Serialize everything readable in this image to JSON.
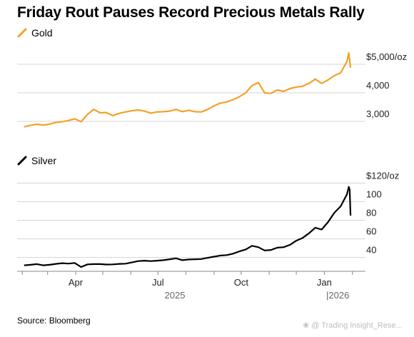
{
  "title": "Friday Rout Pauses Record Precious Metals Rally",
  "source": "Source: Bloomberg",
  "watermark": "❀ @ Trading Insight_Rese...",
  "colors": {
    "gold": "#f5a02a",
    "silver": "#000000",
    "grid": "#d6d6d6"
  },
  "chart_data": [
    {
      "type": "line",
      "title": "Gold",
      "legend": "Gold",
      "color": "#f5a02a",
      "ylim": [
        2700,
        5600
      ],
      "yticks": [
        3000,
        4000,
        5000
      ],
      "ytick_labels": [
        "3,000",
        "4,000",
        "$5,000/oz"
      ],
      "grid": true,
      "series": [
        {
          "name": "Gold",
          "values": [
            [
              "2025-02-03",
              2810
            ],
            [
              "2025-02-10",
              2860
            ],
            [
              "2025-02-17",
              2900
            ],
            [
              "2025-02-24",
              2870
            ],
            [
              "2025-03-03",
              2900
            ],
            [
              "2025-03-10",
              2960
            ],
            [
              "2025-03-17",
              2990
            ],
            [
              "2025-03-24",
              3030
            ],
            [
              "2025-03-31",
              3090
            ],
            [
              "2025-04-07",
              2990
            ],
            [
              "2025-04-14",
              3240
            ],
            [
              "2025-04-21",
              3420
            ],
            [
              "2025-04-28",
              3300
            ],
            [
              "2025-05-05",
              3310
            ],
            [
              "2025-05-12",
              3200
            ],
            [
              "2025-05-19",
              3280
            ],
            [
              "2025-05-26",
              3330
            ],
            [
              "2025-06-02",
              3370
            ],
            [
              "2025-06-09",
              3400
            ],
            [
              "2025-06-16",
              3360
            ],
            [
              "2025-06-23",
              3290
            ],
            [
              "2025-06-30",
              3330
            ],
            [
              "2025-07-07",
              3340
            ],
            [
              "2025-07-14",
              3360
            ],
            [
              "2025-07-21",
              3420
            ],
            [
              "2025-07-28",
              3340
            ],
            [
              "2025-08-04",
              3390
            ],
            [
              "2025-08-11",
              3340
            ],
            [
              "2025-08-18",
              3330
            ],
            [
              "2025-08-25",
              3420
            ],
            [
              "2025-09-01",
              3540
            ],
            [
              "2025-09-08",
              3640
            ],
            [
              "2025-09-15",
              3680
            ],
            [
              "2025-09-22",
              3760
            ],
            [
              "2025-09-29",
              3860
            ],
            [
              "2025-10-06",
              4000
            ],
            [
              "2025-10-13",
              4250
            ],
            [
              "2025-10-20",
              4360
            ],
            [
              "2025-10-27",
              4000
            ],
            [
              "2025-11-03",
              3980
            ],
            [
              "2025-11-10",
              4100
            ],
            [
              "2025-11-17",
              4050
            ],
            [
              "2025-11-24",
              4150
            ],
            [
              "2025-12-01",
              4200
            ],
            [
              "2025-12-08",
              4230
            ],
            [
              "2025-12-15",
              4330
            ],
            [
              "2025-12-22",
              4480
            ],
            [
              "2025-12-29",
              4330
            ],
            [
              "2026-01-05",
              4450
            ],
            [
              "2026-01-12",
              4600
            ],
            [
              "2026-01-19",
              4700
            ],
            [
              "2026-01-26",
              5100
            ],
            [
              "2026-01-28",
              5400
            ],
            [
              "2026-01-30",
              4880
            ]
          ]
        }
      ]
    },
    {
      "type": "line",
      "title": "Silver",
      "legend": "Silver",
      "color": "#000000",
      "ylim": [
        25,
        125
      ],
      "yticks": [
        40,
        60,
        80,
        100,
        120
      ],
      "ytick_labels": [
        "40",
        "60",
        "80",
        "100",
        "$120/oz"
      ],
      "grid": true,
      "series": [
        {
          "name": "Silver",
          "values": [
            [
              "2025-02-03",
              31.5
            ],
            [
              "2025-02-10",
              32.0
            ],
            [
              "2025-02-17",
              32.8
            ],
            [
              "2025-02-24",
              31.5
            ],
            [
              "2025-03-03",
              32.0
            ],
            [
              "2025-03-10",
              33.0
            ],
            [
              "2025-03-17",
              33.8
            ],
            [
              "2025-03-24",
              33.3
            ],
            [
              "2025-03-31",
              34.0
            ],
            [
              "2025-04-07",
              29.6
            ],
            [
              "2025-04-14",
              32.5
            ],
            [
              "2025-04-21",
              32.8
            ],
            [
              "2025-04-28",
              32.8
            ],
            [
              "2025-05-05",
              32.3
            ],
            [
              "2025-05-12",
              32.5
            ],
            [
              "2025-05-19",
              33.0
            ],
            [
              "2025-05-26",
              33.2
            ],
            [
              "2025-06-02",
              34.5
            ],
            [
              "2025-06-09",
              36.0
            ],
            [
              "2025-06-16",
              36.5
            ],
            [
              "2025-06-23",
              36.0
            ],
            [
              "2025-06-30",
              36.5
            ],
            [
              "2025-07-07",
              37.0
            ],
            [
              "2025-07-14",
              38.0
            ],
            [
              "2025-07-21",
              39.0
            ],
            [
              "2025-07-28",
              37.0
            ],
            [
              "2025-08-04",
              37.8
            ],
            [
              "2025-08-11",
              38.0
            ],
            [
              "2025-08-18",
              38.2
            ],
            [
              "2025-08-25",
              39.5
            ],
            [
              "2025-09-01",
              40.8
            ],
            [
              "2025-09-08",
              42.0
            ],
            [
              "2025-09-15",
              42.5
            ],
            [
              "2025-09-22",
              44.0
            ],
            [
              "2025-09-29",
              46.5
            ],
            [
              "2025-10-06",
              48.5
            ],
            [
              "2025-10-13",
              52.5
            ],
            [
              "2025-10-20",
              51.0
            ],
            [
              "2025-10-27",
              47.5
            ],
            [
              "2025-11-03",
              48.0
            ],
            [
              "2025-11-10",
              50.5
            ],
            [
              "2025-11-17",
              51.0
            ],
            [
              "2025-11-24",
              53.5
            ],
            [
              "2025-12-01",
              58.0
            ],
            [
              "2025-12-08",
              61.0
            ],
            [
              "2025-12-15",
              66.0
            ],
            [
              "2025-12-22",
              72.0
            ],
            [
              "2025-12-29",
              70.0
            ],
            [
              "2026-01-05",
              78.0
            ],
            [
              "2026-01-12",
              88.0
            ],
            [
              "2026-01-19",
              95.0
            ],
            [
              "2026-01-26",
              108.0
            ],
            [
              "2026-01-28",
              116.0
            ],
            [
              "2026-01-29",
              113.0
            ],
            [
              "2026-01-30",
              85.0
            ]
          ]
        }
      ],
      "x_axis": {
        "tick_labels": [
          "Apr",
          "Jul",
          "Oct",
          "Jan"
        ],
        "tick_dates": [
          "2025-04-01",
          "2025-07-01",
          "2025-10-01",
          "2026-01-01"
        ],
        "year_labels": [
          "2025",
          "|2026"
        ],
        "xlim": [
          "2025-01-31",
          "2026-02-06"
        ]
      }
    }
  ]
}
